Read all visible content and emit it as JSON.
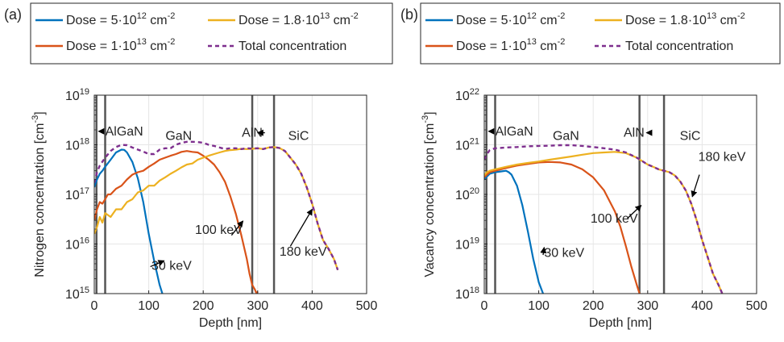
{
  "colors": {
    "series_30keV": "#0072BD",
    "series_100keV": "#D95319",
    "series_180keV": "#EDB120",
    "total": "#7E2F8E",
    "layer_boundary": "#555555",
    "grid": "#e6e6e6",
    "axis": "#262626"
  },
  "chart_data": [
    {
      "type": "line",
      "panel_label": "(a)",
      "xlabel": "Depth [nm]",
      "ylabel": "Nitrogen concentration [cm",
      "ylabel_sup": "-3",
      "ylabel_end": "]",
      "xlim": [
        0,
        500
      ],
      "ylim": [
        1000000000000000.0,
        1e+19
      ],
      "yscale": "log",
      "grid": true,
      "xticks": [
        0,
        100,
        200,
        300,
        400,
        500
      ],
      "yticks": [
        {
          "value": 1000000000000000.0,
          "base": "10",
          "exp": "15"
        },
        {
          "value": 1e+16,
          "base": "10",
          "exp": "16"
        },
        {
          "value": 1e+17,
          "base": "10",
          "exp": "17"
        },
        {
          "value": 1e+18,
          "base": "10",
          "exp": "18"
        },
        {
          "value": 1e+19,
          "base": "10",
          "exp": "19"
        }
      ],
      "legend": {
        "placement": "top",
        "entries": [
          {
            "series": 0,
            "pre": "Dose = 5·10",
            "sup": "12",
            "mid": " cm",
            "sup2": "-2"
          },
          {
            "series": 2,
            "pre": "Dose = 1.8·10",
            "sup": "13",
            "mid": " cm",
            "sup2": "-2"
          },
          {
            "series": 1,
            "pre": "Dose = 1·10",
            "sup": "13",
            "mid": " cm",
            "sup2": "-2"
          },
          {
            "series": 3,
            "pre": "Total concentration",
            "sup": "",
            "mid": "",
            "sup2": ""
          }
        ]
      },
      "layer_boundaries": [
        4,
        20,
        290,
        330
      ],
      "layer_labels": [
        {
          "text": "AlGaN",
          "x": 55,
          "y": 1.55e+18,
          "arrow_to_x": 8
        },
        {
          "text": "GaN",
          "x": 155,
          "y": 1.25e+18
        },
        {
          "text": "AlN",
          "x": 290,
          "y": 1.45e+18,
          "arrow_to_x": 300,
          "arrow_from_text_right": true
        },
        {
          "text": "SiC",
          "x": 375,
          "y": 1.25e+18
        }
      ],
      "annotations": [
        {
          "text": "30 keV",
          "x": 105,
          "y": 3000000000000000.0,
          "arrow_from": [
            103,
            3500000000000000.0
          ],
          "arrow_to": [
            128,
            4600000000000000.0
          ]
        },
        {
          "text": "100 keV",
          "x": 185,
          "y": 1.6e+16,
          "arrow_from": [
            252,
            1.5e+16
          ],
          "arrow_to": [
            273,
            2.9e+16
          ]
        },
        {
          "text": "180 keV",
          "x": 340,
          "y": 5800000000000000.0,
          "arrow_from": [
            360,
            9000000000000000.0
          ],
          "arrow_to": [
            400,
            5e+16
          ]
        }
      ],
      "series": [
        {
          "name": "Dose = 5·10^12 cm^-2",
          "color_key": "series_30keV",
          "dashed": false,
          "x": [
            0,
            5,
            10,
            15,
            20,
            30,
            40,
            50,
            55,
            60,
            70,
            80,
            90,
            100,
            110,
            120,
            125
          ],
          "y": [
            1.4e+17,
            2e+17,
            2.6e+17,
            3e+17,
            3.6e+17,
            5e+17,
            7e+17,
            8e+17,
            7.9e+17,
            7e+17,
            4.5e+17,
            2.1e+17,
            7e+16,
            1.6e+16,
            4500000000000000.0,
            1500000000000000.0,
            1000000000000000.0
          ]
        },
        {
          "name": "Dose = 1·10^13 cm^-2",
          "color_key": "series_100keV",
          "dashed": false,
          "x": [
            0,
            5,
            10,
            15,
            20,
            25,
            30,
            40,
            50,
            60,
            70,
            80,
            90,
            100,
            110,
            120,
            130,
            140,
            150,
            160,
            170,
            180,
            190,
            200,
            210,
            220,
            230,
            240,
            250,
            260,
            270,
            280,
            285,
            290,
            295,
            298,
            300
          ],
          "y": [
            3e+16,
            5e+16,
            7e+16,
            6.5e+16,
            8e+16,
            1e+17,
            1e+17,
            1.3e+17,
            1.5e+17,
            2e+17,
            2.5e+17,
            2.8e+17,
            3e+17,
            3.6e+17,
            4.2e+17,
            5e+17,
            5.5e+17,
            6e+17,
            6.5e+17,
            7.2e+17,
            7.5e+17,
            7.2e+17,
            7e+17,
            6e+17,
            5e+17,
            4e+17,
            2.8e+17,
            1.8e+17,
            9e+16,
            4e+16,
            1.5e+16,
            5000000000000000.0,
            2500000000000000.0,
            1500000000000000.0,
            1200000000000000.0,
            1000000000000000.0,
            1100000000000000.0
          ]
        },
        {
          "name": "Dose = 1.8·10^13 cm^-2",
          "color_key": "series_180keV",
          "dashed": false,
          "x": [
            0,
            5,
            10,
            15,
            20,
            30,
            40,
            50,
            60,
            70,
            80,
            90,
            100,
            110,
            120,
            130,
            140,
            150,
            160,
            170,
            180,
            190,
            200,
            210,
            220,
            230,
            240,
            250,
            260,
            270,
            280,
            290,
            300,
            310,
            320,
            330,
            340,
            350,
            360,
            370,
            380,
            390,
            400,
            410,
            420,
            430,
            440,
            447
          ],
          "y": [
            1.6e+16,
            2.2e+16,
            3.5e+16,
            2.7e+16,
            4.2e+16,
            3.5e+16,
            5e+16,
            5e+16,
            7e+16,
            8e+16,
            1.1e+17,
            1.2e+17,
            1.5e+17,
            1.5e+17,
            1.9e+17,
            2.2e+17,
            2.6e+17,
            3e+17,
            3.5e+17,
            4e+17,
            4.2e+17,
            5e+17,
            5.5e+17,
            6e+17,
            6.5e+17,
            7e+17,
            7.5e+17,
            7.8e+17,
            8e+17,
            8.3e+17,
            8.2e+17,
            8.3e+17,
            8.5e+17,
            8.2e+17,
            8.8e+17,
            9e+17,
            8.6e+17,
            7.5e+17,
            5.5e+17,
            4e+17,
            2.6e+17,
            1.4e+17,
            6.5e+16,
            2.6e+16,
            1.2e+16,
            8000000000000000.0,
            5000000000000000.0,
            3000000000000000.0
          ]
        },
        {
          "name": "Total concentration",
          "color_key": "total",
          "dashed": true,
          "x": [
            0,
            5,
            10,
            20,
            30,
            40,
            50,
            60,
            70,
            80,
            90,
            100,
            110,
            120,
            130,
            140,
            150,
            160,
            170,
            180,
            190,
            200,
            210,
            220,
            230,
            240,
            250,
            260,
            270,
            280,
            290,
            300,
            310,
            320,
            330,
            340,
            350,
            360,
            370,
            380,
            390,
            400,
            410,
            420,
            430,
            440,
            447
          ],
          "y": [
            1.7e+17,
            2.8e+17,
            3.8e+17,
            5.5e+17,
            7.5e+17,
            9e+17,
            1e+18,
            9.8e+17,
            8.8e+17,
            8e+17,
            7.3e+17,
            6.5e+17,
            6.5e+17,
            8e+17,
            8.5e+17,
            8.5e+17,
            1e+18,
            1.1e+18,
            1.15e+18,
            1.15e+18,
            1.13e+18,
            1.1e+18,
            1e+18,
            9.5e+17,
            8.8e+17,
            8.2e+17,
            8.5e+17,
            8.5e+17,
            8.2e+17,
            8.5e+17,
            8.4e+17,
            8.5e+17,
            8.2e+17,
            8.8e+17,
            9e+17,
            8.6e+17,
            7.5e+17,
            5.5e+17,
            4e+17,
            2.6e+17,
            1.4e+17,
            6.5e+16,
            2.6e+16,
            1.2e+16,
            8000000000000000.0,
            5000000000000000.0,
            3000000000000000.0
          ]
        }
      ]
    },
    {
      "type": "line",
      "panel_label": "(b)",
      "xlabel": "Depth [nm]",
      "ylabel": "Vacancy concentration [cm",
      "ylabel_sup": "-3",
      "ylabel_end": "]",
      "xlim": [
        0,
        500
      ],
      "ylim": [
        1e+18,
        1e+22
      ],
      "yscale": "log",
      "grid": true,
      "xticks": [
        0,
        100,
        200,
        300,
        400,
        500
      ],
      "yticks": [
        {
          "value": 1e+18,
          "base": "10",
          "exp": "18"
        },
        {
          "value": 1e+19,
          "base": "10",
          "exp": "19"
        },
        {
          "value": 1e+20,
          "base": "10",
          "exp": "20"
        },
        {
          "value": 1e+21,
          "base": "10",
          "exp": "21"
        },
        {
          "value": 1e+22,
          "base": "10",
          "exp": "22"
        }
      ],
      "legend": {
        "placement": "top",
        "entries": [
          {
            "series": 0,
            "pre": "Dose = 5·10",
            "sup": "12",
            "mid": " cm",
            "sup2": "-2"
          },
          {
            "series": 2,
            "pre": "Dose = 1.8·10",
            "sup": "13",
            "mid": " cm",
            "sup2": "-2"
          },
          {
            "series": 1,
            "pre": "Dose = 1·10",
            "sup": "13",
            "mid": " cm",
            "sup2": "-2"
          },
          {
            "series": 3,
            "pre": "Total concentration",
            "sup": "",
            "mid": "",
            "sup2": ""
          }
        ]
      },
      "layer_boundaries": [
        4,
        20,
        285,
        330
      ],
      "layer_labels": [
        {
          "text": "AlGaN",
          "x": 55,
          "y": 1.55e+21,
          "arrow_to_x": 8
        },
        {
          "text": "GaN",
          "x": 150,
          "y": 1.25e+21
        },
        {
          "text": "AlN",
          "x": 275,
          "y": 1.45e+21,
          "arrow_to_x": 298,
          "arrow_from_text_right": true
        },
        {
          "text": "SiC",
          "x": 378,
          "y": 1.25e+21
        }
      ],
      "annotations": [
        {
          "text": "30 keV",
          "x": 110,
          "y": 5.5e+18,
          "arrow_from": [
            108,
            6e+18
          ],
          "arrow_to": [
            110,
            8.5e+18
          ]
        },
        {
          "text": "100 keV",
          "x": 195,
          "y": 2.7e+19,
          "arrow_from": [
            263,
            3.3e+19
          ],
          "arrow_to": [
            288,
            6e+19
          ]
        },
        {
          "text": "180 keV",
          "x": 393,
          "y": 4.7e+20,
          "arrow_from": [
            395,
            2.5e+20
          ],
          "arrow_to": [
            382,
            9e+19
          ]
        }
      ],
      "series": [
        {
          "name": "Dose = 5·10^12 cm^-2",
          "color_key": "series_30keV",
          "dashed": false,
          "x": [
            0,
            5,
            10,
            20,
            30,
            40,
            45,
            50,
            60,
            70,
            80,
            90,
            100,
            108
          ],
          "y": [
            2e+20,
            2.3e+20,
            2.6e+20,
            2.8e+20,
            2.9e+20,
            3e+20,
            2.8e+20,
            2.5e+20,
            1.5e+20,
            6e+19,
            1.8e+19,
            5e+18,
            1.7e+18,
            1e+18
          ]
        },
        {
          "name": "Dose = 1·10^13 cm^-2",
          "color_key": "series_100keV",
          "dashed": false,
          "x": [
            0,
            5,
            10,
            20,
            40,
            60,
            80,
            100,
            120,
            140,
            160,
            180,
            200,
            220,
            240,
            250,
            260,
            270,
            280,
            285
          ],
          "y": [
            2.2e+20,
            2.5e+20,
            2.8e+20,
            3e+20,
            3.4e+20,
            3.8e+20,
            4.1e+20,
            4.4e+20,
            4.5e+20,
            4.4e+20,
            4e+20,
            3.2e+20,
            2.2e+20,
            1.2e+20,
            4.5e+19,
            2.2e+19,
            9e+18,
            3.5e+18,
            1.5e+18,
            1e+18
          ]
        },
        {
          "name": "Dose = 1.8·10^13 cm^-2",
          "color_key": "series_180keV",
          "dashed": false,
          "x": [
            0,
            5,
            10,
            20,
            40,
            60,
            80,
            100,
            120,
            140,
            160,
            180,
            200,
            220,
            240,
            260,
            280,
            300,
            310,
            320,
            330,
            340,
            350,
            360,
            370,
            380,
            390,
            400,
            410,
            420,
            430,
            437
          ],
          "y": [
            2.4e+20,
            2.8e+20,
            3e+20,
            3.2e+20,
            3.6e+20,
            4e+20,
            4.3e+20,
            4.6e+20,
            5e+20,
            5.4e+20,
            5.8e+20,
            6.3e+20,
            6.8e+20,
            7e+20,
            7.2e+20,
            6.8e+20,
            5.5e+20,
            4e+20,
            3.6e+20,
            3.2e+20,
            3e+20,
            2.8e+20,
            2.4e+20,
            1.8e+20,
            1.2e+20,
            6.5e+19,
            3e+19,
            1.2e+19,
            5.5e+18,
            2.5e+18,
            1.5e+18,
            1e+18
          ]
        },
        {
          "name": "Total concentration",
          "color_key": "total",
          "dashed": true,
          "x": [
            0,
            5,
            10,
            20,
            40,
            60,
            80,
            100,
            120,
            140,
            160,
            180,
            200,
            220,
            240,
            260,
            280,
            300,
            310,
            320,
            330,
            340,
            350,
            360,
            370,
            380,
            390,
            400,
            410,
            420,
            430,
            437
          ],
          "y": [
            5e+20,
            6.5e+20,
            7.8e+20,
            8.5e+20,
            8.8e+20,
            9e+20,
            9.3e+20,
            9.5e+20,
            9.6e+20,
            9.8e+20,
            9.8e+20,
            9.5e+20,
            9e+20,
            8.5e+20,
            8e+20,
            7e+20,
            5.5e+20,
            4e+20,
            3.6e+20,
            3.2e+20,
            3e+20,
            2.8e+20,
            2.4e+20,
            1.8e+20,
            1.2e+20,
            6.5e+19,
            3e+19,
            1.2e+19,
            5.5e+18,
            2.5e+18,
            1.5e+18,
            1e+18
          ]
        }
      ]
    }
  ]
}
